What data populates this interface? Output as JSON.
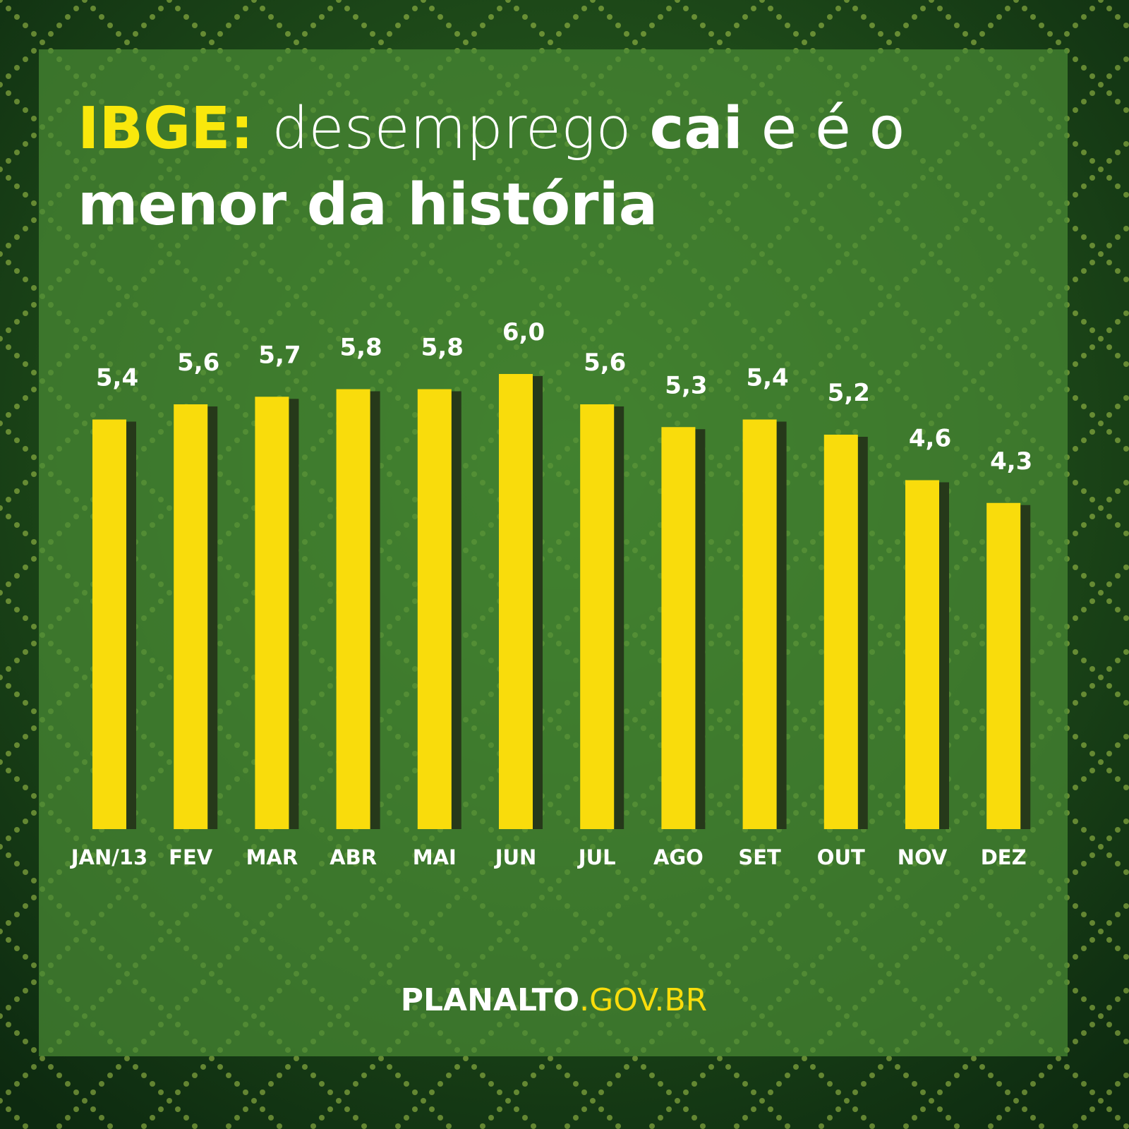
{
  "chart_data": {
    "type": "bar",
    "title": [
      "IBGE:",
      "desemprego",
      "cai",
      "e é o",
      "menor da história"
    ],
    "categories": [
      "JAN/13",
      "FEV",
      "MAR",
      "ABR",
      "MAI",
      "JUN",
      "JUL",
      "AGO",
      "SET",
      "OUT",
      "NOV",
      "DEZ"
    ],
    "values": [
      5.4,
      5.6,
      5.7,
      5.8,
      5.8,
      6.0,
      5.6,
      5.3,
      5.4,
      5.2,
      4.6,
      4.3
    ],
    "value_labels": [
      "5,4",
      "5,6",
      "5,7",
      "5,8",
      "5,8",
      "6,0",
      "5,6",
      "5,3",
      "5,4",
      "5,2",
      "4,6",
      "4,3"
    ],
    "color": "#f9dc0c",
    "source": [
      "PLANALTO",
      ".GOV.BR"
    ]
  }
}
